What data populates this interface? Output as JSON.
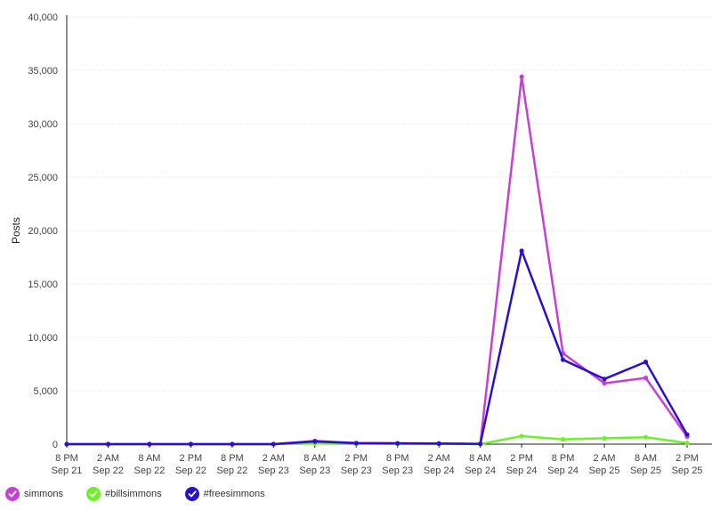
{
  "chart_data": {
    "type": "line",
    "ylabel": "Posts",
    "xlabel": "",
    "ylim": [
      0,
      40000
    ],
    "yticks": [
      "0",
      "5,000",
      "10,000",
      "15,000",
      "20,000",
      "25,000",
      "30,000",
      "35,000",
      "40,000"
    ],
    "ytick_values": [
      0,
      5000,
      10000,
      15000,
      20000,
      25000,
      30000,
      35000,
      40000
    ],
    "categories": [
      [
        "8 PM",
        "Sep 21"
      ],
      [
        "2 AM",
        "Sep 22"
      ],
      [
        "8 AM",
        "Sep 22"
      ],
      [
        "2 PM",
        "Sep 22"
      ],
      [
        "8 PM",
        "Sep 22"
      ],
      [
        "2 AM",
        "Sep 23"
      ],
      [
        "8 AM",
        "Sep 23"
      ],
      [
        "2 PM",
        "Sep 23"
      ],
      [
        "8 PM",
        "Sep 23"
      ],
      [
        "2 AM",
        "Sep 24"
      ],
      [
        "8 AM",
        "Sep 24"
      ],
      [
        "2 PM",
        "Sep 24"
      ],
      [
        "8 PM",
        "Sep 24"
      ],
      [
        "2 AM",
        "Sep 25"
      ],
      [
        "8 AM",
        "Sep 25"
      ],
      [
        "2 PM",
        "Sep 25"
      ]
    ],
    "grid": true,
    "legend_position": "bottom-left",
    "series": [
      {
        "name": "simmons",
        "color": "#c83fd4",
        "values": [
          0,
          0,
          0,
          0,
          0,
          0,
          300,
          100,
          80,
          60,
          30,
          34400,
          8500,
          5700,
          6200,
          700
        ]
      },
      {
        "name": "#billsimmons",
        "color": "#6ef02b",
        "values": [
          0,
          0,
          0,
          0,
          0,
          0,
          50,
          20,
          15,
          10,
          5,
          750,
          450,
          550,
          650,
          100
        ]
      },
      {
        "name": "#freesimmons",
        "color": "#2a0fd0",
        "values": [
          0,
          0,
          0,
          0,
          0,
          0,
          250,
          90,
          70,
          50,
          20,
          18100,
          7900,
          6100,
          7700,
          900
        ]
      }
    ]
  }
}
